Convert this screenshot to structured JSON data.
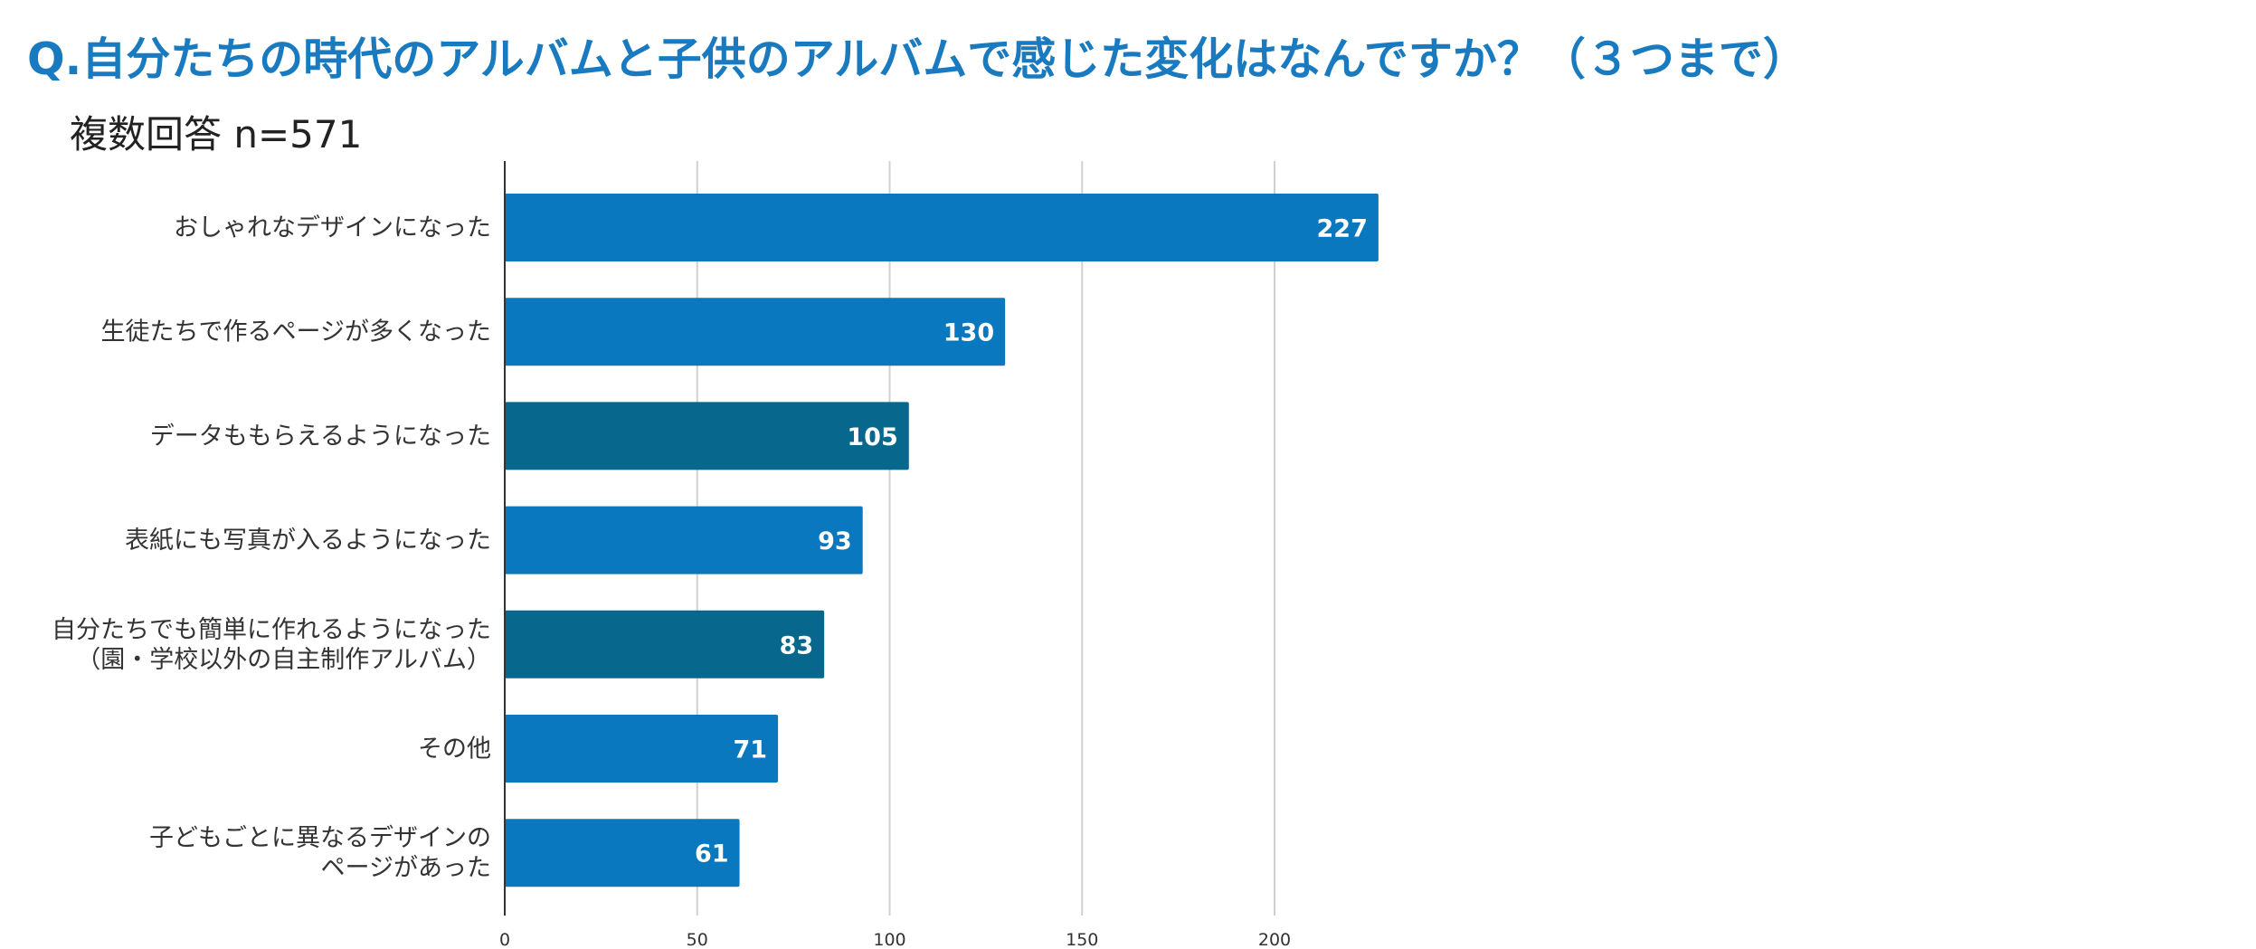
{
  "header": {
    "title": "Q.自分たちの時代のアルバムと子供のアルバムで感じた変化はなんですか？（３つまで）",
    "subtitle": "複数回答 n=571"
  },
  "chart_data": {
    "type": "bar",
    "orientation": "horizontal",
    "title": "Q.自分たちの時代のアルバムと子供のアルバムで感じた変化はなんですか？（３つまで）",
    "subtitle": "複数回答 n=571",
    "xlabel": "",
    "ylabel": "",
    "categories": [
      [
        "おしゃれなデザインになった"
      ],
      [
        "生徒たちで作るページが多くなった"
      ],
      [
        "データももらえるようになった"
      ],
      [
        "表紙にも写真が入るようになった"
      ],
      [
        "自分たちでも簡単に作れるようになった",
        "（園・学校以外の自主制作アルバム）"
      ],
      [
        "その他"
      ],
      [
        "子どもごとに異なるデザインの",
        "ページがあった"
      ]
    ],
    "values": [
      227,
      130,
      105,
      93,
      83,
      71,
      61
    ],
    "bar_colors": [
      "#0a78be",
      "#0a78be",
      "#07678c",
      "#0a78be",
      "#07678c",
      "#0a78be",
      "#0a78be"
    ],
    "xlim": [
      0,
      227
    ],
    "xticks": [
      0,
      50,
      100,
      150,
      200
    ],
    "grid": true,
    "data_labels": true,
    "legend": "none"
  },
  "colors": {
    "title": "#1a7abf",
    "bar_primary": "#0a78be",
    "bar_secondary": "#07678c",
    "gridline": "#d0d0d0",
    "axis": "#333333",
    "value_label": "#ffffff"
  }
}
